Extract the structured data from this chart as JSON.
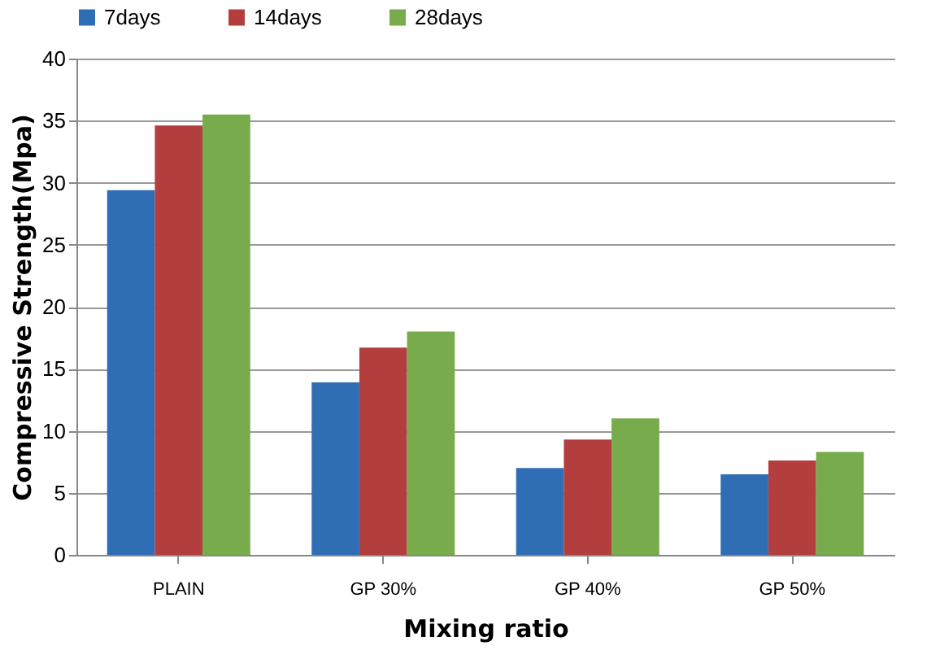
{
  "chart_data": {
    "type": "bar",
    "xlabel": "Mixing ratio",
    "ylabel": "Compressive Strength(Mpa)",
    "categories": [
      "PLAIN",
      "GP 30%",
      "GP 40%",
      "GP 50%"
    ],
    "series": [
      {
        "name": "7days",
        "color": "#2f6db5",
        "values": [
          29.4,
          13.9,
          7.0,
          6.5
        ]
      },
      {
        "name": "14days",
        "color": "#b33e3e",
        "values": [
          34.6,
          16.7,
          9.3,
          7.6
        ]
      },
      {
        "name": "28days",
        "color": "#77ab4b",
        "values": [
          35.5,
          18.0,
          11.0,
          8.3
        ]
      }
    ],
    "ylim": [
      0,
      40
    ],
    "yticks": [
      0,
      5,
      10,
      15,
      20,
      25,
      30,
      35,
      40
    ],
    "grid": "y",
    "legend": "top"
  }
}
